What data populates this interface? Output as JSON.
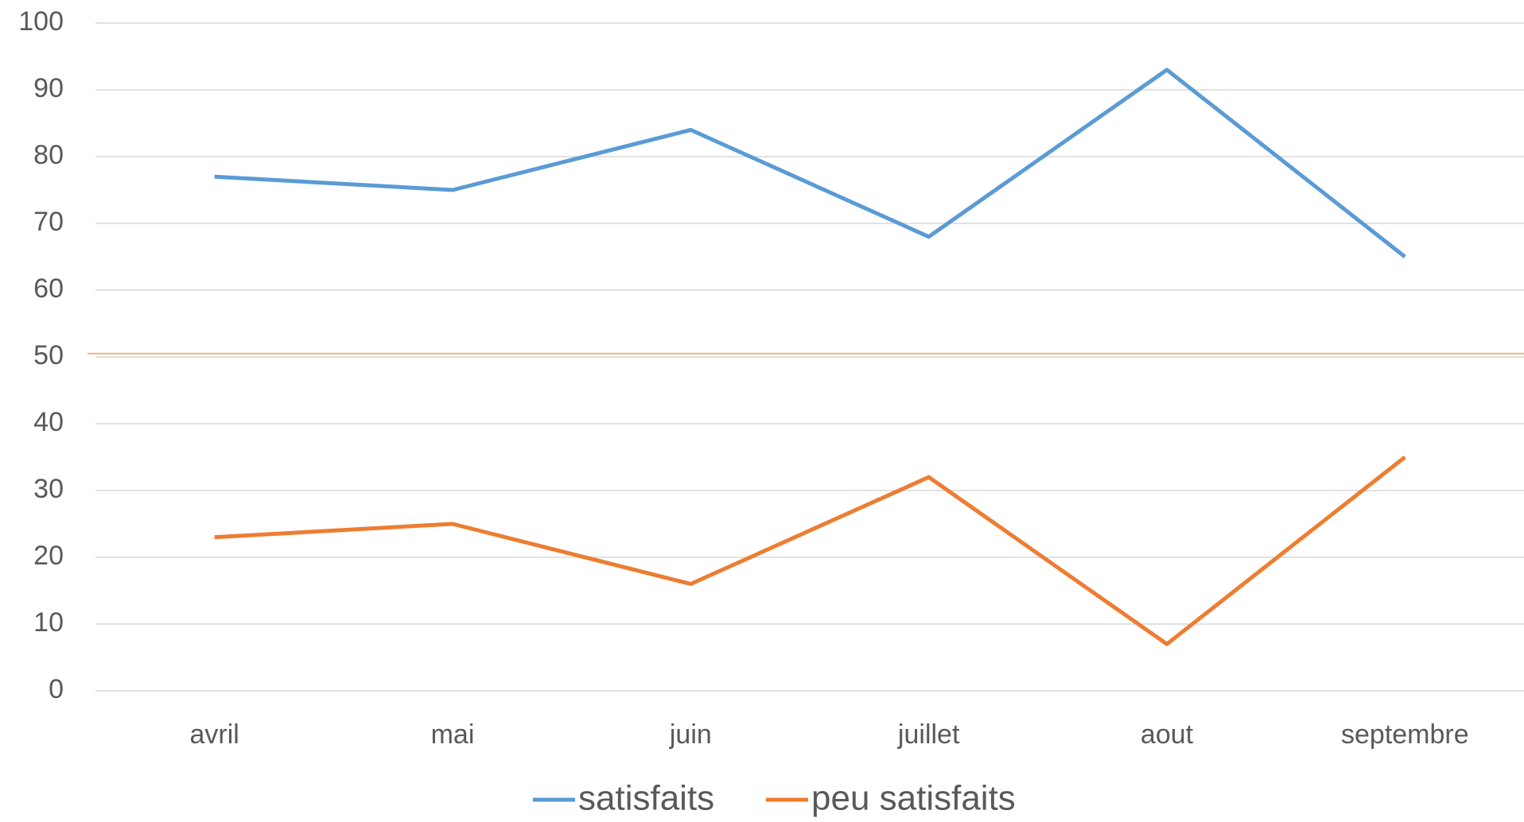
{
  "chart_data": {
    "type": "line",
    "categories": [
      "avril",
      "mai",
      "juin",
      "juillet",
      "aout",
      "septembre"
    ],
    "series": [
      {
        "name": "satisfaits",
        "color": "#5b9bd5",
        "values": [
          77,
          75,
          84,
          68,
          93,
          65
        ]
      },
      {
        "name": "peu satisfaits",
        "color": "#ed7d31",
        "values": [
          23,
          25,
          16,
          32,
          7,
          35
        ]
      }
    ],
    "ylim": [
      0,
      100
    ],
    "yticks": [
      0,
      10,
      20,
      30,
      40,
      50,
      60,
      70,
      80,
      90,
      100
    ],
    "grid": true,
    "legend": "bottom",
    "reference_line": {
      "value": 50.5,
      "color": "#f4b183"
    }
  }
}
